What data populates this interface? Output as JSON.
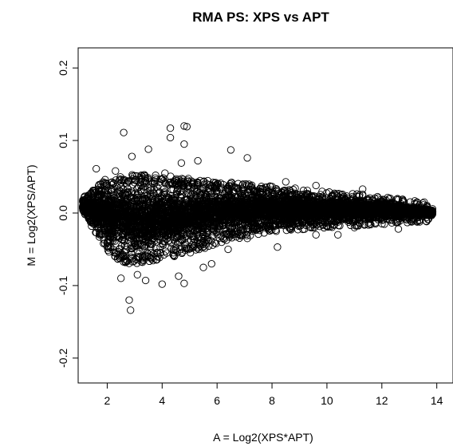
{
  "chart_data": {
    "type": "scatter",
    "title": "RMA PS: XPS vs APT",
    "xlabel": "A = Log2(XPS*APT)",
    "ylabel": "M = Log2(XPS/APT)",
    "xlim": [
      1.0,
      14.3
    ],
    "ylim": [
      -0.22,
      0.22
    ],
    "x_ticks": [
      2,
      4,
      6,
      8,
      10,
      12,
      14
    ],
    "x_tick_labels": [
      "2",
      "4",
      "6",
      "8",
      "10",
      "12",
      "14"
    ],
    "y_ticks": [
      -0.2,
      -0.1,
      0.0,
      0.1,
      0.2
    ],
    "y_tick_labels": [
      "-0.2",
      "-0.1",
      "0.0",
      "0.1",
      "0.2"
    ],
    "marker": "open-circle",
    "marker_color": "#000000",
    "grid": false,
    "legend": "none",
    "outliers": [
      {
        "x": 2.6,
        "y": 0.111
      },
      {
        "x": 4.3,
        "y": 0.117
      },
      {
        "x": 4.8,
        "y": 0.12
      },
      {
        "x": 4.9,
        "y": 0.119
      },
      {
        "x": 4.3,
        "y": 0.104
      },
      {
        "x": 4.8,
        "y": 0.095
      },
      {
        "x": 3.5,
        "y": 0.088
      },
      {
        "x": 6.5,
        "y": 0.087
      },
      {
        "x": 2.9,
        "y": 0.078
      },
      {
        "x": 7.1,
        "y": 0.076
      },
      {
        "x": 4.7,
        "y": 0.069
      },
      {
        "x": 5.3,
        "y": 0.072
      },
      {
        "x": 1.6,
        "y": 0.061
      },
      {
        "x": 2.3,
        "y": 0.058
      },
      {
        "x": 4.1,
        "y": 0.055
      },
      {
        "x": 8.5,
        "y": 0.043
      },
      {
        "x": 9.6,
        "y": 0.038
      },
      {
        "x": 11.3,
        "y": 0.033
      },
      {
        "x": 2.8,
        "y": -0.12
      },
      {
        "x": 2.85,
        "y": -0.134
      },
      {
        "x": 4.0,
        "y": -0.098
      },
      {
        "x": 4.8,
        "y": -0.097
      },
      {
        "x": 2.5,
        "y": -0.09
      },
      {
        "x": 3.4,
        "y": -0.093
      },
      {
        "x": 3.1,
        "y": -0.085
      },
      {
        "x": 4.6,
        "y": -0.087
      },
      {
        "x": 5.5,
        "y": -0.075
      },
      {
        "x": 5.8,
        "y": -0.07
      },
      {
        "x": 6.4,
        "y": -0.05
      },
      {
        "x": 7.1,
        "y": -0.035
      },
      {
        "x": 8.2,
        "y": -0.047
      },
      {
        "x": 9.6,
        "y": -0.03
      },
      {
        "x": 10.4,
        "y": -0.03
      },
      {
        "x": 11.0,
        "y": -0.02
      },
      {
        "x": 12.6,
        "y": -0.022
      },
      {
        "x": 2.0,
        "y": -0.04
      }
    ],
    "dense_band": {
      "description_points": [
        {
          "x": 1.1,
          "upper": 0.022,
          "lower": -0.002
        },
        {
          "x": 1.5,
          "upper": 0.028,
          "lower": -0.015
        },
        {
          "x": 2.0,
          "upper": 0.04,
          "lower": -0.045
        },
        {
          "x": 2.5,
          "upper": 0.046,
          "lower": -0.06
        },
        {
          "x": 3.0,
          "upper": 0.046,
          "lower": -0.064
        },
        {
          "x": 3.5,
          "upper": 0.045,
          "lower": -0.062
        },
        {
          "x": 4.0,
          "upper": 0.044,
          "lower": -0.056
        },
        {
          "x": 4.5,
          "upper": 0.042,
          "lower": -0.052
        },
        {
          "x": 5.0,
          "upper": 0.04,
          "lower": -0.048
        },
        {
          "x": 6.0,
          "upper": 0.036,
          "lower": -0.036
        },
        {
          "x": 7.0,
          "upper": 0.033,
          "lower": -0.025
        },
        {
          "x": 8.0,
          "upper": 0.029,
          "lower": -0.018
        },
        {
          "x": 9.0,
          "upper": 0.026,
          "lower": -0.015
        },
        {
          "x": 10.0,
          "upper": 0.022,
          "lower": -0.012
        },
        {
          "x": 11.0,
          "upper": 0.019,
          "lower": -0.01
        },
        {
          "x": 12.0,
          "upper": 0.015,
          "lower": -0.008
        },
        {
          "x": 13.0,
          "upper": 0.01,
          "lower": -0.005
        },
        {
          "x": 13.8,
          "upper": 0.006,
          "lower": -0.004
        }
      ],
      "center": 0.0
    }
  }
}
